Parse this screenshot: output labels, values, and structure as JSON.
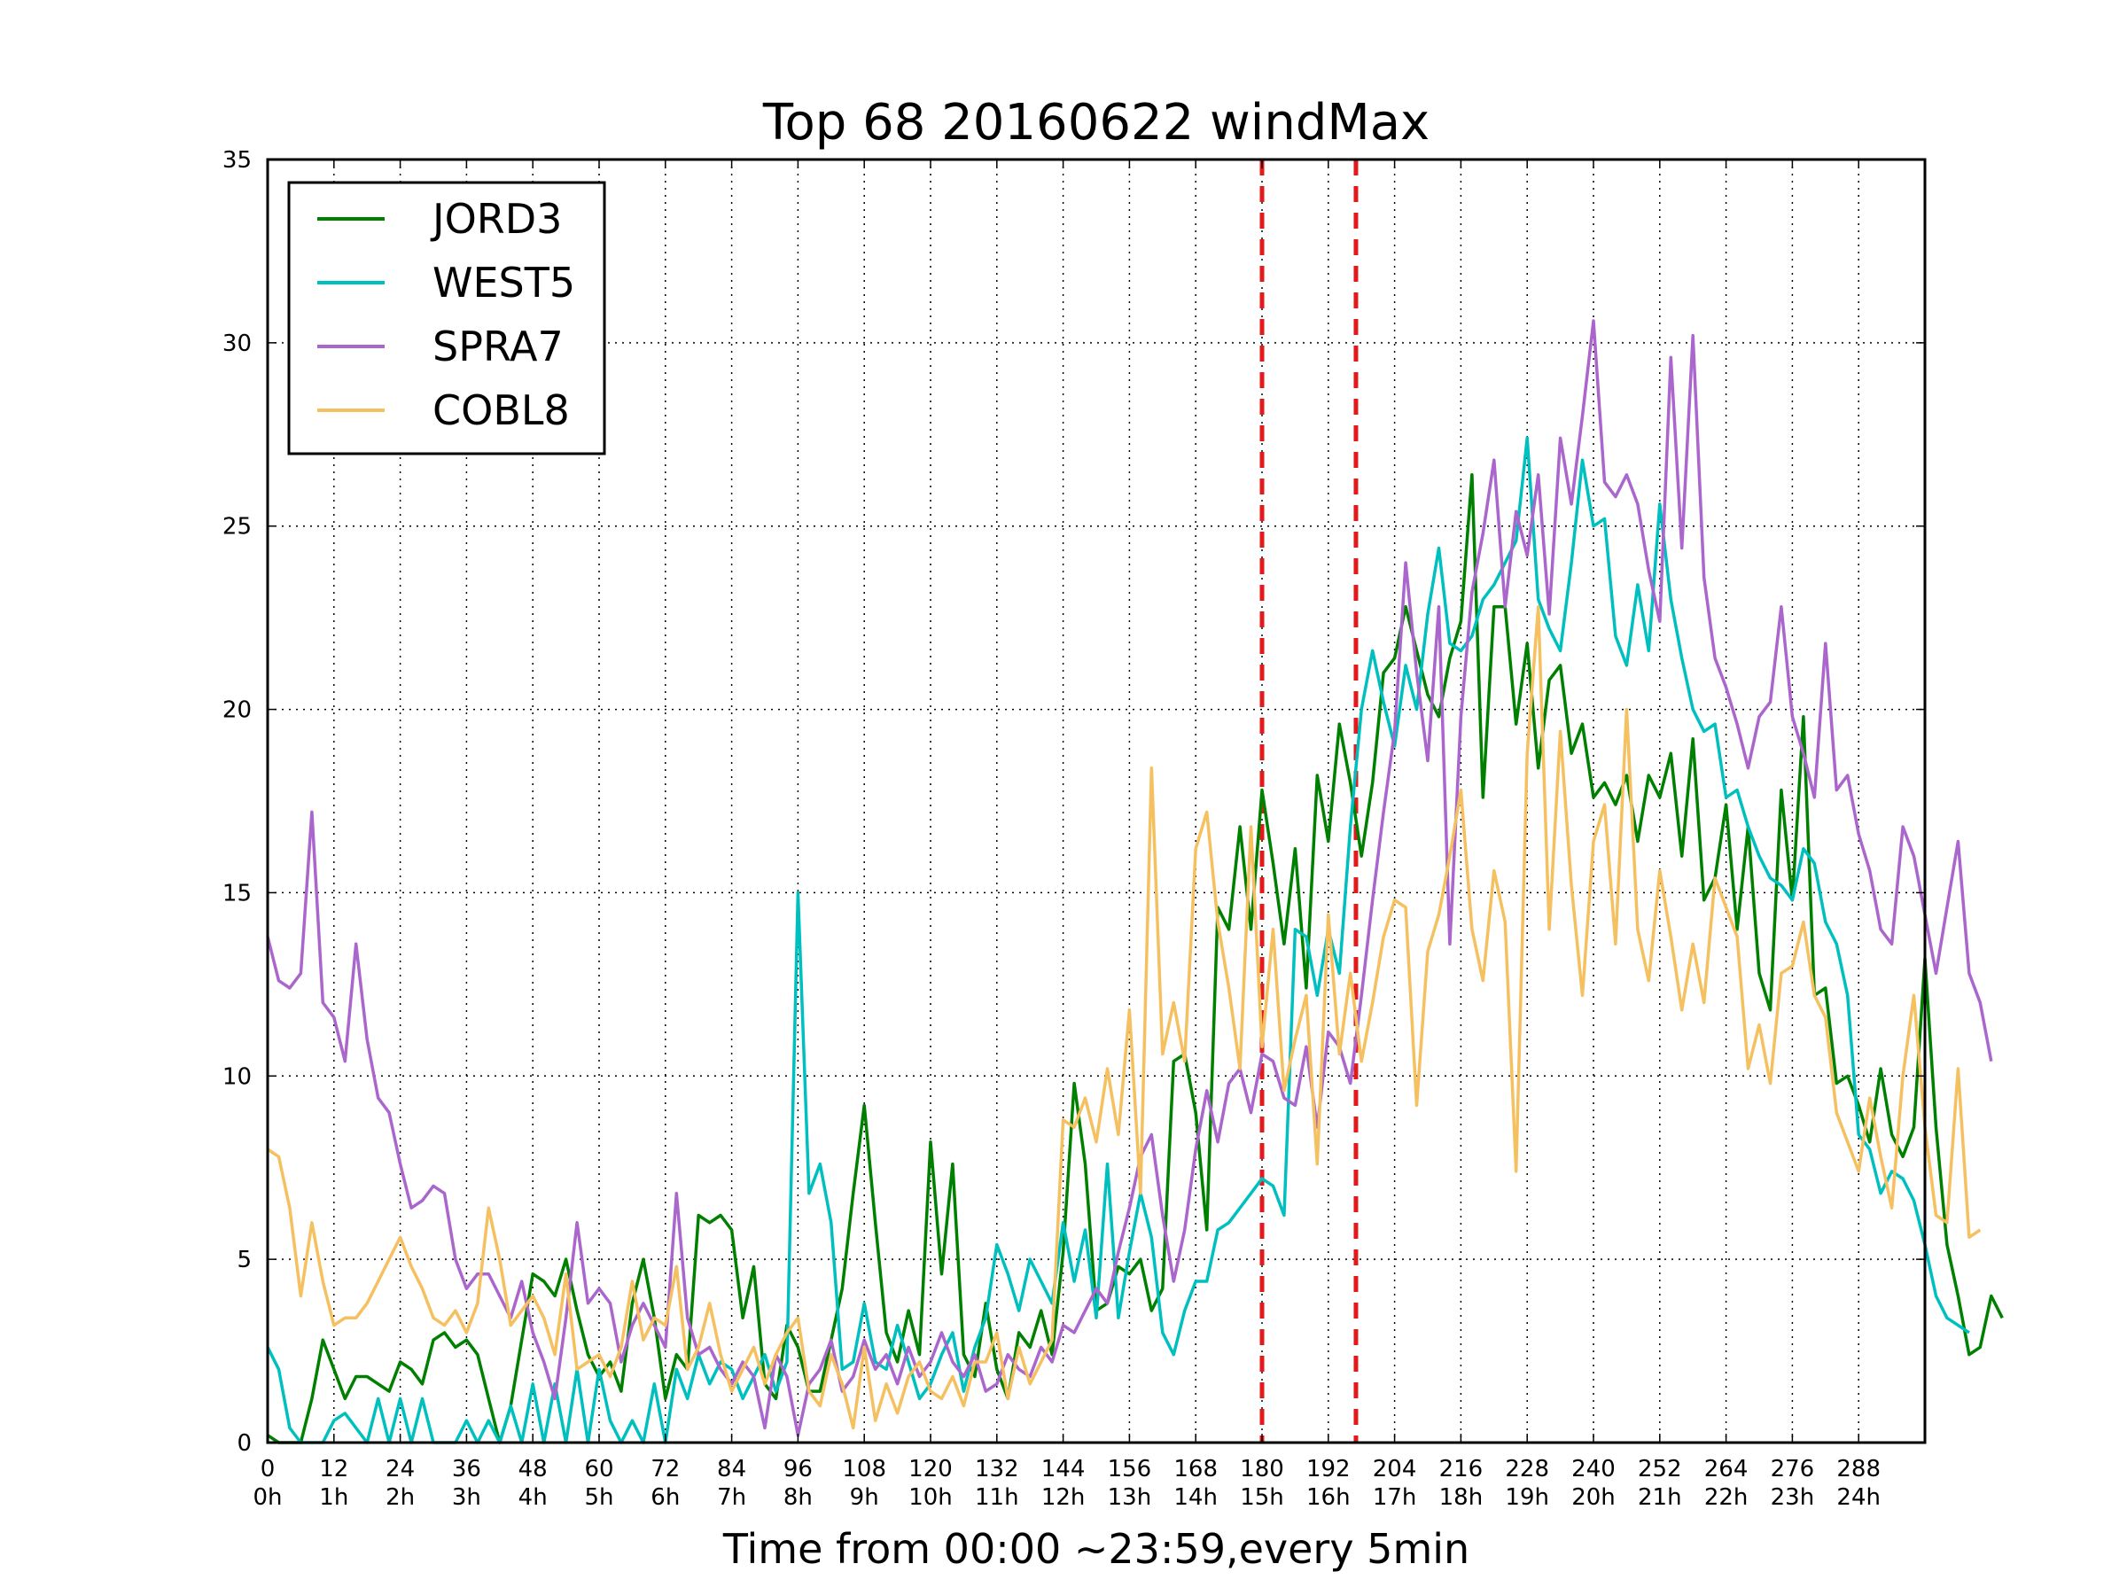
{
  "chart_data": {
    "type": "line",
    "title": "Top 68 20160622 windMax",
    "xlabel": "Time from 00:00 ~23:59,every 5min",
    "ylabel": "",
    "xlim": [
      0,
      300
    ],
    "ylim": [
      0,
      35
    ],
    "grid": true,
    "legend_position": "top-left",
    "x_ticks": [
      0,
      12,
      24,
      36,
      48,
      60,
      72,
      84,
      96,
      108,
      120,
      132,
      144,
      156,
      168,
      180,
      192,
      204,
      216,
      228,
      240,
      252,
      264,
      276,
      288
    ],
    "x_tick_labels": [
      "0\n0h",
      "12\n1h",
      "24\n2h",
      "36\n3h",
      "48\n4h",
      "60\n5h",
      "72\n6h",
      "84\n7h",
      "96\n8h",
      "108\n9h",
      "120\n10h",
      "132\n11h",
      "144\n12h",
      "156\n13h",
      "168\n14h",
      "180\n15h",
      "192\n16h",
      "204\n17h",
      "216\n18h",
      "228\n19h",
      "240\n20h",
      "252\n21h",
      "264\n22h",
      "276\n23h",
      "288\n24h"
    ],
    "y_ticks": [
      0,
      5,
      10,
      15,
      20,
      25,
      30,
      35
    ],
    "y_tick_labels": [
      "0",
      "5",
      "10",
      "15",
      "20",
      "25",
      "30",
      "35"
    ],
    "vlines": [
      {
        "x": 180,
        "color": "#e31a1c",
        "style": "dashed"
      },
      {
        "x": 197,
        "color": "#e31a1c",
        "style": "dashed"
      }
    ],
    "series": [
      {
        "name": "JORD3",
        "color": "#008000",
        "x_start": 0,
        "x_step": 2,
        "values": [
          0.2,
          0,
          0,
          0,
          1.2,
          2.8,
          2.0,
          1.2,
          1.8,
          1.8,
          1.6,
          1.4,
          2.2,
          2.0,
          1.6,
          2.8,
          3.0,
          2.6,
          2.8,
          2.4,
          1.2,
          0,
          1.0,
          2.8,
          4.6,
          4.4,
          4.0,
          5.0,
          3.6,
          2.4,
          1.8,
          2.2,
          1.4,
          3.8,
          5.0,
          3.4,
          1.2,
          2.4,
          2.0,
          6.2,
          6.0,
          6.2,
          5.8,
          3.4,
          4.8,
          1.6,
          1.2,
          3.2,
          2.6,
          1.4,
          1.4,
          2.8,
          4.2,
          6.8,
          9.2,
          6.0,
          3.0,
          2.2,
          3.6,
          2.4,
          8.2,
          4.6,
          7.6,
          2.4,
          1.8,
          3.8,
          2.0,
          1.2,
          3.0,
          2.6,
          3.6,
          2.4,
          5.2,
          9.8,
          7.6,
          3.6,
          3.8,
          4.8,
          4.6,
          5.0,
          3.6,
          4.2,
          10.4,
          10.6,
          9.0,
          5.8,
          14.6,
          14.0,
          16.8,
          14.0,
          17.8,
          15.8,
          13.6,
          16.2,
          12.4,
          18.2,
          16.4,
          19.6,
          18.0,
          16.0,
          18.0,
          21.0,
          21.4,
          22.8,
          21.6,
          20.4,
          19.8,
          21.4,
          22.4,
          26.4,
          17.6,
          22.8,
          22.8,
          19.6,
          21.8,
          18.4,
          20.8,
          21.2,
          18.8,
          19.6,
          17.6,
          18.0,
          17.4,
          18.2,
          16.4,
          18.2,
          17.6,
          18.8,
          16.0,
          19.2,
          14.8,
          15.4,
          17.4,
          14.0,
          16.8,
          12.8,
          11.8,
          17.8,
          14.8,
          19.8,
          12.2,
          12.4,
          9.8,
          10.0,
          9.2,
          8.2,
          10.2,
          8.4,
          7.8,
          8.6,
          13.2,
          8.6,
          5.4,
          4.0,
          2.4,
          2.6,
          4.0,
          3.4
        ]
      },
      {
        "name": "WEST5",
        "color": "#00bfbf",
        "x_start": 0,
        "x_step": 2,
        "values": [
          2.6,
          2.0,
          0.4,
          0,
          0,
          0,
          0.6,
          0.8,
          0.4,
          0,
          1.2,
          0,
          1.2,
          0,
          1.2,
          0,
          0,
          0,
          0.6,
          0,
          0.6,
          0,
          1.0,
          0,
          1.6,
          0,
          1.6,
          0,
          2.0,
          0,
          2.0,
          0.6,
          0,
          0.6,
          0,
          1.6,
          0,
          2.0,
          1.2,
          2.4,
          1.6,
          2.2,
          2.0,
          1.2,
          1.8,
          2.4,
          1.4,
          2.2,
          15.0,
          6.8,
          7.6,
          6.0,
          2.0,
          2.2,
          3.8,
          2.2,
          2.0,
          3.2,
          2.2,
          1.2,
          1.6,
          2.4,
          3.0,
          1.4,
          2.6,
          3.4,
          5.4,
          4.6,
          3.6,
          5.0,
          4.4,
          3.8,
          6.0,
          4.4,
          5.8,
          3.4,
          7.6,
          3.4,
          5.2,
          6.8,
          5.6,
          3.0,
          2.4,
          3.6,
          4.4,
          4.4,
          5.8,
          6.0,
          6.4,
          6.8,
          7.2,
          7.0,
          6.2,
          14.0,
          13.8,
          12.2,
          14.0,
          12.8,
          16.8,
          20.0,
          21.6,
          20.2,
          19.0,
          21.2,
          20.0,
          22.6,
          24.4,
          21.8,
          21.6,
          22.0,
          23.0,
          23.4,
          24.0,
          24.6,
          27.4,
          23.0,
          22.2,
          21.6,
          24.0,
          26.8,
          25.0,
          25.2,
          22.0,
          21.2,
          23.4,
          21.6,
          25.6,
          23.0,
          21.4,
          20.0,
          19.4,
          19.6,
          17.6,
          17.8,
          16.8,
          16.0,
          15.4,
          15.2,
          14.8,
          16.2,
          15.8,
          14.2,
          13.6,
          12.2,
          8.4,
          8.0,
          6.8,
          7.4,
          7.2,
          6.6,
          5.4,
          4.0,
          3.4,
          3.2,
          3.0
        ]
      },
      {
        "name": "SPRA7",
        "color": "#aa66cc",
        "x_start": 0,
        "x_step": 2,
        "values": [
          13.8,
          12.6,
          12.4,
          12.8,
          17.2,
          12.0,
          11.6,
          10.4,
          13.6,
          11.0,
          9.4,
          9.0,
          7.6,
          6.4,
          6.6,
          7.0,
          6.8,
          5.0,
          4.2,
          4.6,
          4.6,
          4.0,
          3.4,
          4.4,
          3.0,
          2.2,
          1.2,
          3.4,
          6.0,
          3.8,
          4.2,
          3.8,
          2.2,
          3.2,
          3.8,
          3.2,
          2.6,
          6.8,
          3.4,
          2.4,
          2.6,
          2.0,
          1.6,
          2.2,
          1.8,
          0.4,
          2.4,
          1.8,
          0.2,
          1.6,
          2.0,
          2.8,
          1.4,
          1.8,
          2.8,
          2.0,
          2.4,
          1.6,
          2.6,
          1.8,
          2.2,
          3.0,
          2.2,
          1.8,
          2.4,
          1.4,
          1.6,
          2.4,
          2.0,
          1.8,
          2.6,
          2.2,
          3.2,
          3.0,
          3.6,
          4.2,
          3.8,
          5.2,
          6.4,
          7.8,
          8.4,
          6.2,
          4.4,
          5.8,
          8.0,
          9.6,
          8.2,
          9.8,
          10.2,
          9.0,
          10.6,
          10.4,
          9.4,
          9.2,
          10.8,
          8.6,
          11.2,
          10.8,
          9.8,
          12.2,
          14.8,
          17.2,
          19.4,
          24.0,
          21.0,
          18.6,
          22.8,
          13.6,
          19.8,
          23.2,
          24.8,
          26.8,
          22.8,
          25.4,
          24.2,
          26.4,
          22.6,
          27.4,
          25.6,
          28.0,
          30.6,
          26.2,
          25.8,
          26.4,
          25.6,
          23.8,
          22.4,
          29.6,
          24.4,
          30.2,
          23.6,
          21.4,
          20.6,
          19.6,
          18.4,
          19.8,
          20.2,
          22.8,
          19.8,
          18.8,
          17.6,
          21.8,
          17.8,
          18.2,
          16.6,
          15.6,
          14.0,
          13.6,
          16.8,
          16.0,
          14.4,
          12.8,
          14.6,
          16.4,
          12.8,
          12.0,
          10.4
        ]
      },
      {
        "name": "COBL8",
        "color": "#f5c060",
        "x_start": 0,
        "x_step": 2,
        "values": [
          8.0,
          7.8,
          6.4,
          4.0,
          6.0,
          4.4,
          3.2,
          3.4,
          3.4,
          3.8,
          4.4,
          5.0,
          5.6,
          4.8,
          4.2,
          3.4,
          3.2,
          3.6,
          3.0,
          3.8,
          6.4,
          5.0,
          3.2,
          3.6,
          4.0,
          3.4,
          2.4,
          4.6,
          2.0,
          2.2,
          2.4,
          1.8,
          2.6,
          4.4,
          2.8,
          3.4,
          3.2,
          4.8,
          2.0,
          2.6,
          3.8,
          2.4,
          1.4,
          2.0,
          2.6,
          1.6,
          2.4,
          3.0,
          3.4,
          1.4,
          1.0,
          2.4,
          1.6,
          0.4,
          2.6,
          0.6,
          1.6,
          0.8,
          1.8,
          2.2,
          1.4,
          1.2,
          1.8,
          1.0,
          2.2,
          2.2,
          3.0,
          1.2,
          2.6,
          1.6,
          2.2,
          2.8,
          8.8,
          8.6,
          9.4,
          8.2,
          10.2,
          8.4,
          11.8,
          6.8,
          18.4,
          10.6,
          12.0,
          10.4,
          16.2,
          17.2,
          14.2,
          12.4,
          10.2,
          16.8,
          10.8,
          14.0,
          9.6,
          11.0,
          12.2,
          7.6,
          14.4,
          10.6,
          12.8,
          10.4,
          12.0,
          13.8,
          14.8,
          14.6,
          9.2,
          13.4,
          14.4,
          16.0,
          17.8,
          14.0,
          12.6,
          15.6,
          14.2,
          7.4,
          18.8,
          22.8,
          14.0,
          19.4,
          15.2,
          12.2,
          16.4,
          17.4,
          13.6,
          20.0,
          14.0,
          12.6,
          15.6,
          13.8,
          11.8,
          13.6,
          12.0,
          15.4,
          14.6,
          13.8,
          10.2,
          11.4,
          9.8,
          12.8,
          13.0,
          14.2,
          12.2,
          11.6,
          9.0,
          8.2,
          7.4,
          9.4,
          7.8,
          6.4,
          10.0,
          12.2,
          8.6,
          6.2,
          6.0,
          10.2,
          5.6,
          5.8
        ]
      }
    ]
  }
}
